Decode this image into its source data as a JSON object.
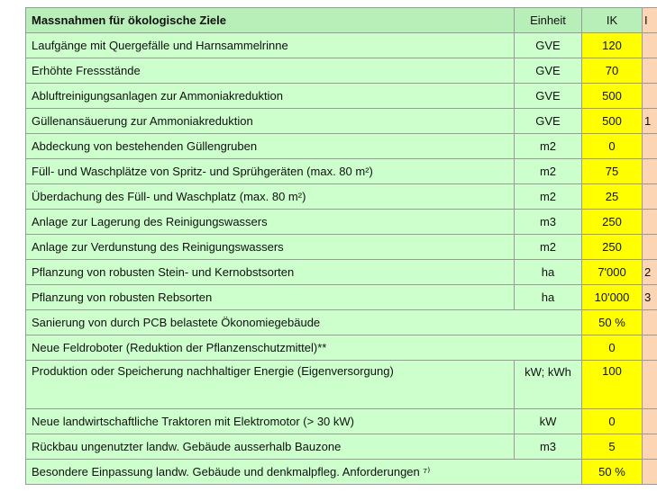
{
  "header": {
    "title": "Massnahmen für ökologische Ziele",
    "unit": "Einheit",
    "ik": "IK",
    "extra": "I"
  },
  "rows": [
    {
      "label": "Laufgänge mit Quergefälle und Harnsammelrinne",
      "unit": "GVE",
      "ik": "120",
      "extra": ""
    },
    {
      "label": "Erhöhte Fressstände",
      "unit": "GVE",
      "ik": "70",
      "extra": ""
    },
    {
      "label": "Abluftreinigungsanlagen zur Ammoniakreduktion",
      "unit": "GVE",
      "ik": "500",
      "extra": ""
    },
    {
      "label": "Güllenansäuerung zur Ammoniakreduktion",
      "unit": "GVE",
      "ik": "500",
      "extra": "1"
    },
    {
      "label": "Abdeckung von bestehenden Güllengruben",
      "unit": "m2",
      "ik": "0",
      "extra": ""
    },
    {
      "label": "Füll- und Waschplätze von Spritz- und Sprühgeräten (max. 80 m²)",
      "unit": "m2",
      "ik": "75",
      "extra": ""
    },
    {
      "label": "Überdachung des Füll- und Waschplatz (max. 80 m²)",
      "unit": "m2",
      "ik": "25",
      "extra": ""
    },
    {
      "label": "Anlage zur Lagerung des Reinigungswassers",
      "unit": "m3",
      "ik": "250",
      "extra": ""
    },
    {
      "label": "Anlage zur Verdunstung des Reinigungswassers",
      "unit": "m2",
      "ik": "250",
      "extra": ""
    },
    {
      "label": "Pflanzung von robusten Stein- und Kernobstsorten",
      "unit": "ha",
      "ik": "7'000",
      "extra": "2"
    },
    {
      "label": "Pflanzung von robusten Rebsorten",
      "unit": "ha",
      "ik": "10'000",
      "extra": "3"
    },
    {
      "label": "Sanierung von durch PCB belastete Ökonomiegebäude",
      "unit": null,
      "ik": "50 %",
      "extra": ""
    },
    {
      "label": "Neue Feldroboter (Reduktion der Pflanzenschutzmittel)**",
      "unit": null,
      "ik": "0",
      "extra": ""
    },
    {
      "label": "Produktion oder Speicherung nachhaltiger Energie (Eigenversorgung)",
      "unit": "kW; kWh",
      "ik": "100",
      "extra": ""
    },
    {
      "label": "Neue landwirtschaftliche Traktoren mit Elektromotor (> 30 kW)",
      "unit": "kW",
      "ik": "0",
      "extra": ""
    },
    {
      "label": "Rückbau ungenutzter landw. Gebäude ausserhalb Bauzone",
      "unit": "m3",
      "ik": "5",
      "extra": ""
    },
    {
      "label": "Besondere Einpassung landw. Gebäude und denkmalpfleg. Anforderungen ⁷⁾",
      "unit": null,
      "ik": "50 %",
      "extra": ""
    }
  ]
}
